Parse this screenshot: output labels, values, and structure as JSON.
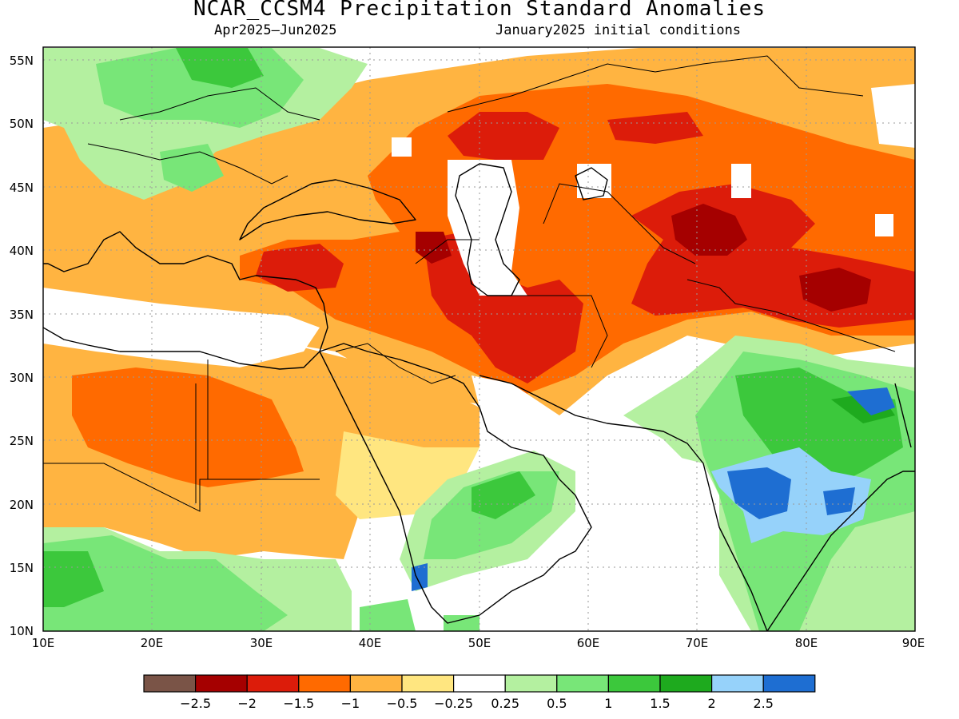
{
  "title": "NCAR_CCSM4 Precipitation Standard Anomalies",
  "subtitle_left": "Apr2025–Jun2025",
  "subtitle_right": "January2025 initial conditions",
  "map": {
    "lon_range": [
      10,
      90
    ],
    "lat_range": [
      10,
      56
    ],
    "lon_ticks": [
      "10E",
      "20E",
      "30E",
      "40E",
      "50E",
      "60E",
      "70E",
      "80E",
      "90E"
    ],
    "lat_ticks": [
      "10N",
      "15N",
      "20N",
      "25N",
      "30N",
      "35N",
      "40N",
      "45N",
      "50N",
      "55N"
    ],
    "grid": "dotted"
  },
  "colorbar": {
    "colors": [
      "#7a5447",
      "#a50000",
      "#dc1c0a",
      "#ff6a00",
      "#ffb441",
      "#ffe680",
      "#ffffff",
      "#b4f0a0",
      "#78e678",
      "#3cc83c",
      "#1eaa1e",
      "#96d2fa",
      "#1e6ed2"
    ],
    "labels": [
      "−2.5",
      "−2",
      "−1.5",
      "−1",
      "−0.5",
      "−0.25",
      "0.25",
      "0.5",
      "1",
      "1.5",
      "2",
      "2.5"
    ]
  },
  "chart_data": {
    "type": "heatmap",
    "title": "NCAR_CCSM4 Precipitation Standard Anomalies",
    "period": "Apr2025–Jun2025",
    "initial_conditions": "January2025 initial conditions",
    "x_range": [
      10,
      90
    ],
    "y_range": [
      10,
      56
    ],
    "levels": [
      -2.5,
      -2,
      -1.5,
      -1,
      -0.5,
      -0.25,
      0.25,
      0.5,
      1,
      1.5,
      2,
      2.5
    ],
    "regions": [
      {
        "lon": [
          10,
          58
        ],
        "lat": [
          25,
          56
        ],
        "value": -0.7
      },
      {
        "lon": [
          58,
          90
        ],
        "lat": [
          32,
          56
        ],
        "value": -1.1
      },
      {
        "lon": [
          16,
          40
        ],
        "lat": [
          20,
          32
        ],
        "value": -1.2
      },
      {
        "lon": [
          38,
          52
        ],
        "lat": [
          36,
          41
        ],
        "value": -1.3
      },
      {
        "lon": [
          45,
          60
        ],
        "lat": [
          30,
          38
        ],
        "value": -1.7
      },
      {
        "lon": [
          51,
          58
        ],
        "lat": [
          46,
          51
        ],
        "value": -1.7
      },
      {
        "lon": [
          64,
          80
        ],
        "lat": [
          34,
          42
        ],
        "value": -1.8
      },
      {
        "lon": [
          67,
          75
        ],
        "lat": [
          39,
          43
        ],
        "value": -2.2
      },
      {
        "lon": [
          79,
          88
        ],
        "lat": [
          35,
          38
        ],
        "value": -2.3
      },
      {
        "lon": [
          73,
          90
        ],
        "lat": [
          20,
          32
        ],
        "value": 1.5
      },
      {
        "lon": [
          75,
          83
        ],
        "lat": [
          19,
          23
        ],
        "value": 2.5
      },
      {
        "lon": [
          44,
          58
        ],
        "lat": [
          14,
          23
        ],
        "value": 1.2
      },
      {
        "lon": [
          16,
          44
        ],
        "lat": [
          50,
          56
        ],
        "value": 1.0
      },
      {
        "lon": [
          10,
          30
        ],
        "lat": [
          10,
          17
        ],
        "value": 1.0
      }
    ]
  }
}
